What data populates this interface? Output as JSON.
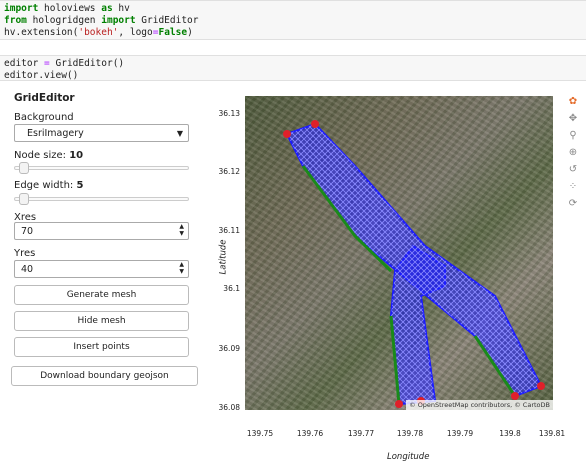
{
  "code": {
    "cell1": [
      [
        {
          "t": "import",
          "c": "kw"
        },
        {
          "t": " holoviews "
        },
        {
          "t": "as",
          "c": "kw"
        },
        {
          "t": " hv"
        }
      ],
      [
        {
          "t": "from",
          "c": "kw"
        },
        {
          "t": " hologridgen "
        },
        {
          "t": "import",
          "c": "kw"
        },
        {
          "t": " GridEditor"
        }
      ],
      [
        {
          "t": "hv.extension("
        },
        {
          "t": "'bokeh'",
          "c": "str"
        },
        {
          "t": ", logo"
        },
        {
          "t": "=",
          "c": "op"
        },
        {
          "t": "False",
          "c": "kwc"
        },
        {
          "t": ")"
        }
      ]
    ],
    "cell2": [
      [
        {
          "t": "editor "
        },
        {
          "t": "=",
          "c": "op"
        },
        {
          "t": " GridEditor()"
        }
      ],
      [
        {
          "t": "editor.view()"
        }
      ]
    ]
  },
  "panel": {
    "title": "GridEditor",
    "background_label": "Background",
    "background_value": "EsriImagery",
    "node_size_label": "Node size: ",
    "node_size_value": "10",
    "node_size_fraction": 0.03,
    "edge_width_label": "Edge width: ",
    "edge_width_value": "5",
    "edge_width_fraction": 0.03,
    "xres_label": "Xres",
    "xres_value": "70",
    "yres_label": "Yres",
    "yres_value": "40",
    "generate_mesh": "Generate mesh",
    "hide_mesh": "Hide mesh",
    "insert_points": "Insert points",
    "download": "Download boundary geojson"
  },
  "plot": {
    "ylabel": "Latitude",
    "xlabel": "Longitude",
    "yticks": [
      "36.13",
      "36.12",
      "36.11",
      "36.1",
      "36.09",
      "36.08"
    ],
    "xticks": [
      "139.75",
      "139.76",
      "139.77",
      "139.78",
      "139.79",
      "139.8",
      "139.81"
    ],
    "attribution": "© OpenStreetMap contributors, © CartoDB",
    "mesh_color": "#1a1aff",
    "boundary_color": "#1a8a1a",
    "vertex_color": "#e0202a"
  },
  "toolbar": [
    "bokeh-logo-icon",
    "pan-icon",
    "zoom-icon",
    "point-draw-icon",
    "reset-icon",
    "hover-icon",
    "refresh-icon"
  ]
}
